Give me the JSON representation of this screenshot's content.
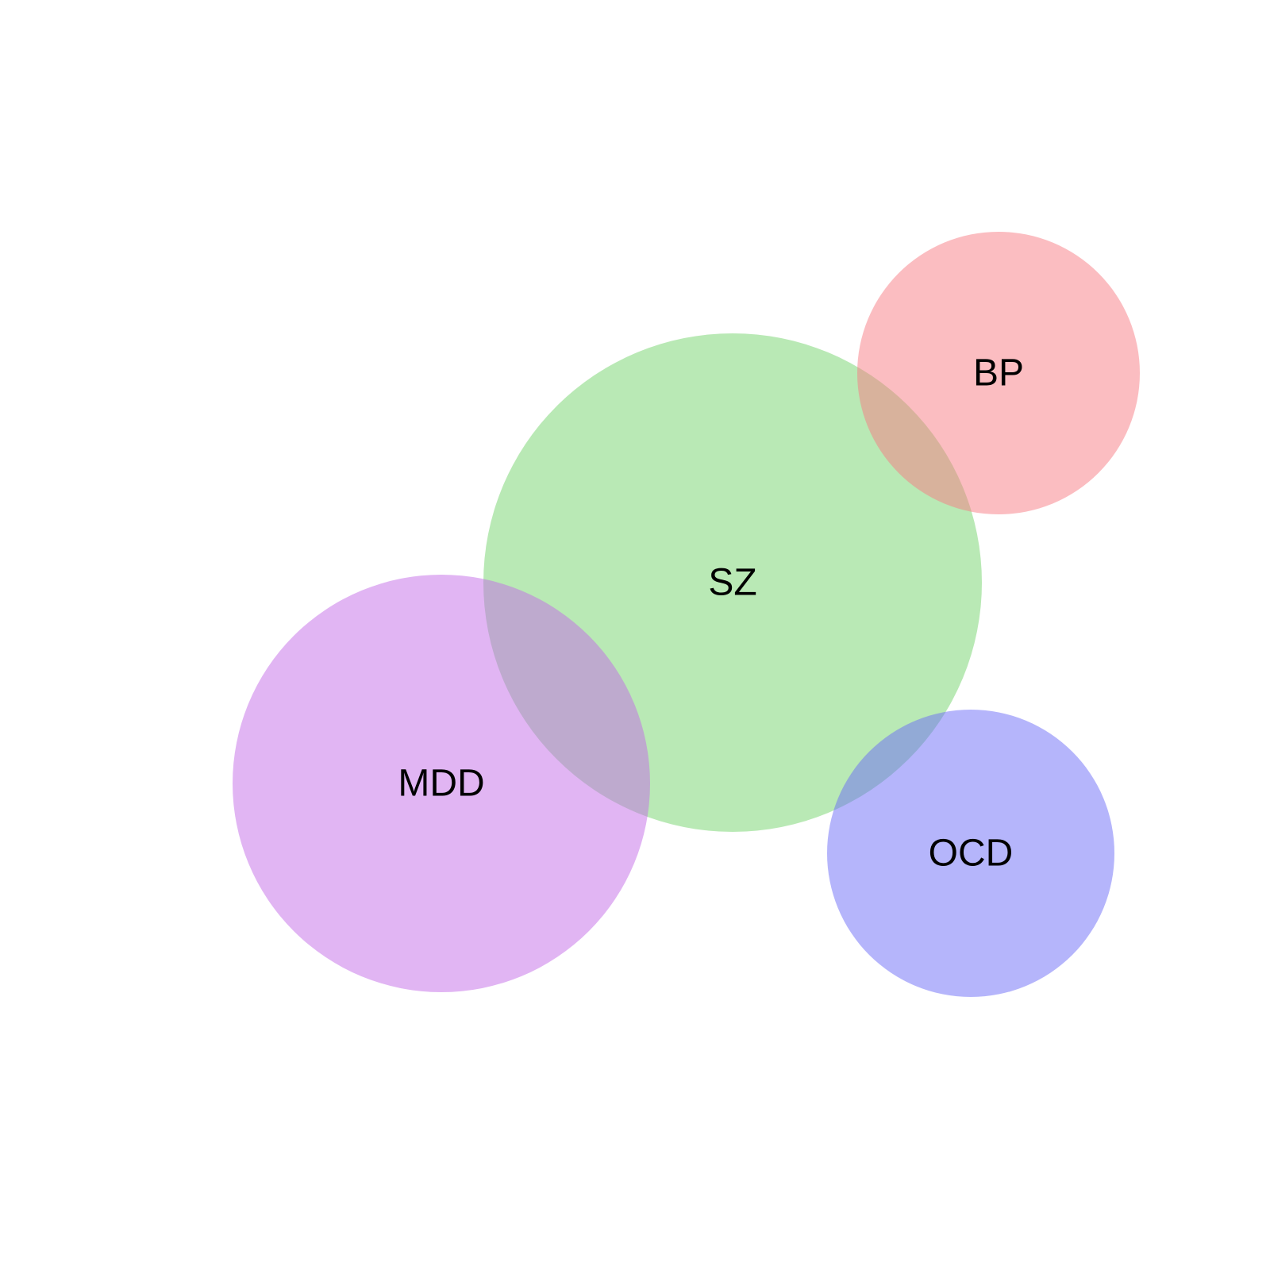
{
  "diagram": {
    "type": "venn",
    "fill_opacity": 0.5,
    "sets": [
      {
        "id": "sz",
        "label": "SZ",
        "color": "#74d46c"
      },
      {
        "id": "bp",
        "label": "BP",
        "color": "#f87c84"
      },
      {
        "id": "mdd",
        "label": "MDD",
        "color": "#c46ce8"
      },
      {
        "id": "ocd",
        "label": "OCD",
        "color": "#6c6cf8"
      }
    ]
  }
}
